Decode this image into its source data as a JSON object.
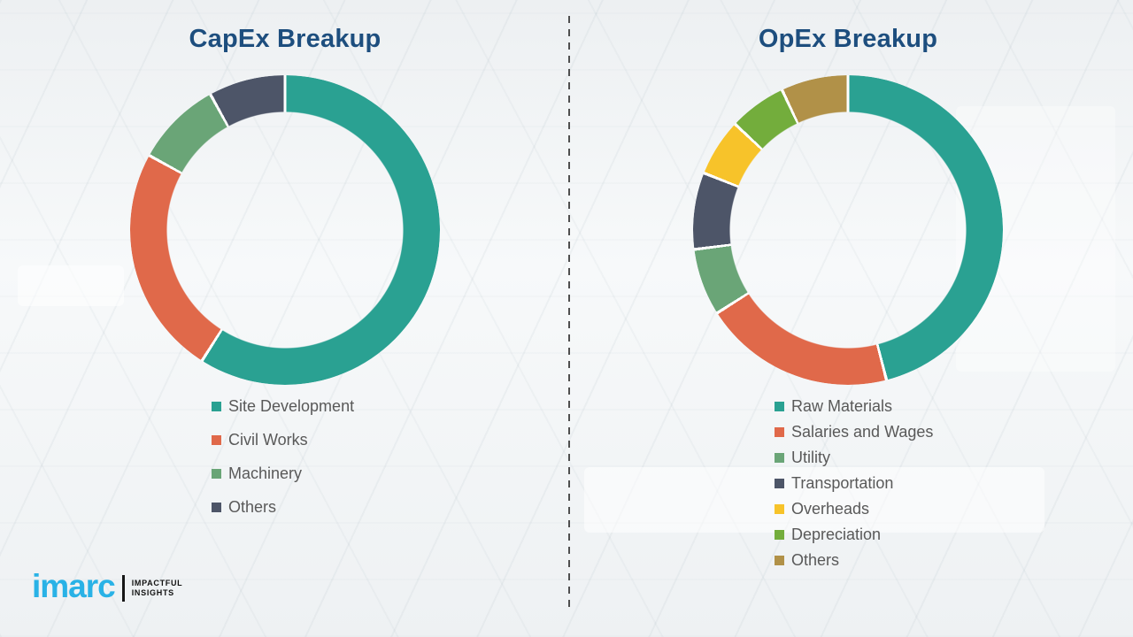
{
  "charts": [
    {
      "title": "CapEx Breakup"
    },
    {
      "title": "OpEx Breakup"
    }
  ],
  "chart_data": [
    {
      "type": "pie",
      "donut": true,
      "title": "CapEx Breakup",
      "labels": [
        "Site Development",
        "Civil Works",
        "Machinery",
        "Others"
      ],
      "values": [
        59,
        24,
        9,
        8
      ],
      "colors": [
        "#2aa192",
        "#e0694a",
        "#6aa577",
        "#4d5568"
      ],
      "start_angle_deg": 0,
      "direction": "clockwise",
      "legend_position": "bottom-left"
    },
    {
      "type": "pie",
      "donut": true,
      "title": "OpEx Breakup",
      "labels": [
        "Raw Materials",
        "Salaries and Wages",
        "Utility",
        "Transportation",
        "Overheads",
        "Depreciation",
        "Others"
      ],
      "values": [
        46,
        20,
        7,
        8,
        6,
        6,
        7
      ],
      "colors": [
        "#2aa192",
        "#e0694a",
        "#6aa577",
        "#4d5568",
        "#f7c32a",
        "#73ad3c",
        "#b19148"
      ],
      "start_angle_deg": 0,
      "direction": "clockwise",
      "legend_position": "bottom-left"
    }
  ],
  "logo": {
    "name": "imarc",
    "tagline_line1": "IMPACTFUL",
    "tagline_line2": "INSIGHTS"
  }
}
